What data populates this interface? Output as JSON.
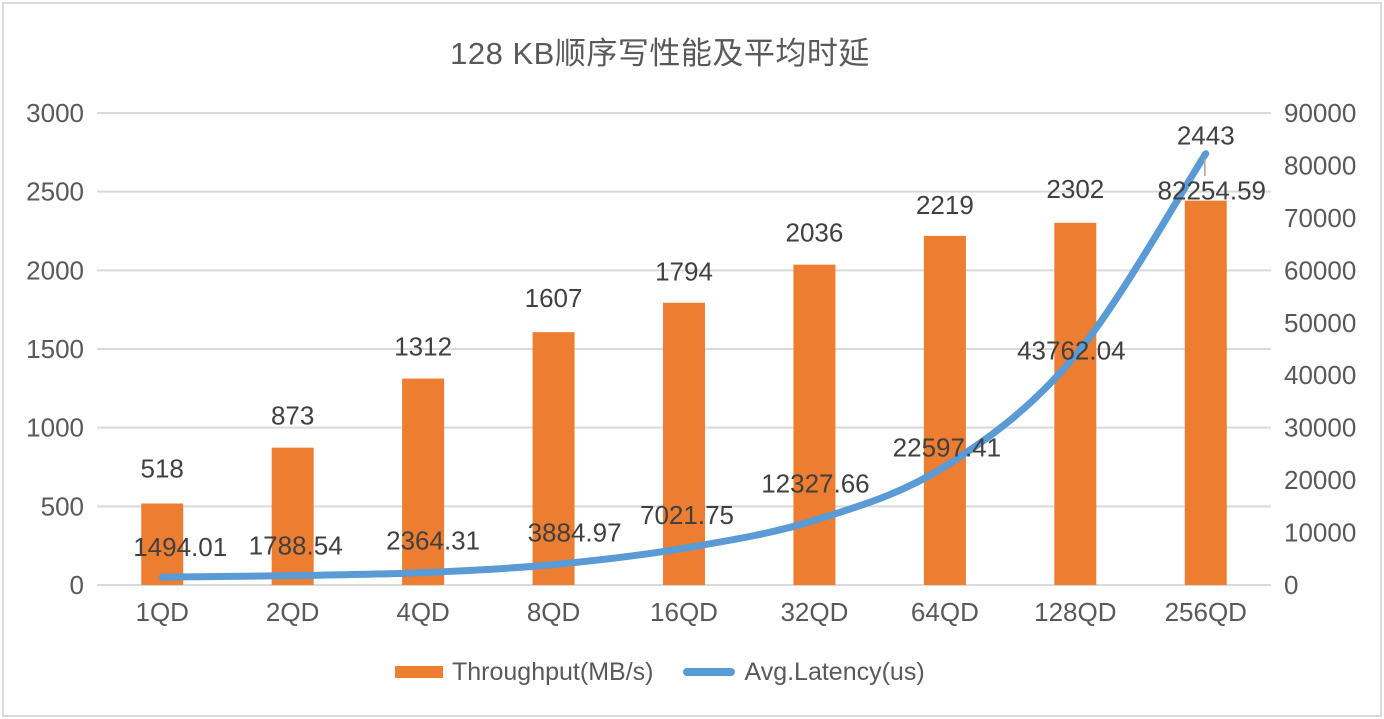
{
  "chart_data": {
    "type": "bar",
    "subtype": "combo-bar-line-dual-axis",
    "title": "128 KB顺序写性能及平均时延",
    "categories": [
      "1QD",
      "2QD",
      "4QD",
      "8QD",
      "16QD",
      "32QD",
      "64QD",
      "128QD",
      "256QD"
    ],
    "series": [
      {
        "name": "Throughput(MB/s)",
        "chart_type": "bar",
        "axis": "left",
        "color": "#ED7D31",
        "values": [
          518,
          873,
          1312,
          1607,
          1794,
          2036,
          2219,
          2302,
          2443
        ],
        "labels": [
          "518",
          "873",
          "1312",
          "1607",
          "1794",
          "2036",
          "2219",
          "2302",
          "2443"
        ]
      },
      {
        "name": "Avg.Latency(us)",
        "chart_type": "line",
        "axis": "right",
        "color": "#5B9BD5",
        "smooth": true,
        "values": [
          1494.01,
          1788.54,
          2364.31,
          3884.97,
          7021.75,
          12327.66,
          22597.41,
          43762.04,
          82254.59
        ],
        "labels": [
          "1494.01",
          "1788.54",
          "2364.31",
          "3884.97",
          "7021.75",
          "12327.66",
          "22597.41",
          "43762.04",
          "82254.59"
        ]
      }
    ],
    "axes": {
      "left": {
        "min": 0,
        "max": 3000,
        "step": 500,
        "tick_labels": [
          "0",
          "500",
          "1000",
          "1500",
          "2000",
          "2500",
          "3000"
        ]
      },
      "right": {
        "min": 0,
        "max": 90000,
        "step": 10000,
        "tick_labels": [
          "0",
          "10000",
          "20000",
          "30000",
          "40000",
          "50000",
          "60000",
          "70000",
          "80000",
          "90000"
        ]
      }
    },
    "grid": {
      "horizontal": true,
      "vertical": false,
      "color": "#D9D9D9"
    },
    "legend": {
      "position": "bottom",
      "items": [
        "Throughput(MB/s)",
        "Avg.Latency(us)"
      ]
    },
    "colors": {
      "bar": "#ED7D31",
      "line": "#5B9BD5",
      "tick_text": "#595959",
      "data_label_text": "#404040",
      "border": "#D9D9D9",
      "leader_line": "#A6A6A6"
    }
  }
}
